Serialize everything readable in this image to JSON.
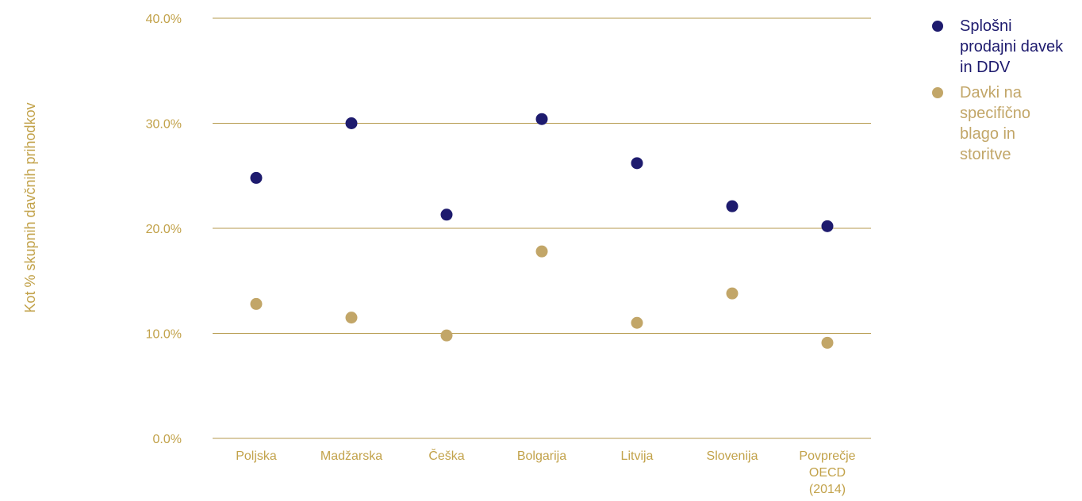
{
  "colors": {
    "navy": "#1e1b6e",
    "gold": "#c2a668",
    "tick_text": "#c2a24a",
    "axis_title_text": "#c2a24a",
    "grid": "#b59a4c"
  },
  "chart_data": {
    "type": "scatter",
    "ylabel": "Kot % skupnih davčnih prihodkov",
    "xlabel": "",
    "ylim": [
      0,
      40
    ],
    "yticks": [
      {
        "value": 0,
        "label": "0.0%"
      },
      {
        "value": 10,
        "label": "10.0%"
      },
      {
        "value": 20,
        "label": "20.0%"
      },
      {
        "value": 30,
        "label": "30.0%"
      },
      {
        "value": 40,
        "label": "40.0%"
      }
    ],
    "grid": true,
    "legend": "right",
    "categories": [
      [
        "Poljska"
      ],
      [
        "Madžarska"
      ],
      [
        "Češka"
      ],
      [
        "Bolgarija"
      ],
      [
        "Litvija"
      ],
      [
        "Slovenija"
      ],
      [
        "Povprečje",
        "OECD",
        "(2014)"
      ]
    ],
    "series": [
      {
        "name": "Splošni prodajni davek in DDV",
        "legend_lines": [
          "Splošni",
          "prodajni davek",
          "in DDV"
        ],
        "color": "#1e1b6e",
        "values": [
          24.8,
          30.0,
          21.3,
          30.4,
          26.2,
          22.1,
          20.2
        ]
      },
      {
        "name": "Davki na specifično blago in storitve",
        "legend_lines": [
          "Davki na",
          "specifično",
          "blago in",
          "storitve"
        ],
        "color": "#c2a668",
        "values": [
          12.8,
          11.5,
          9.8,
          17.8,
          11.0,
          13.8,
          9.1
        ]
      }
    ]
  }
}
